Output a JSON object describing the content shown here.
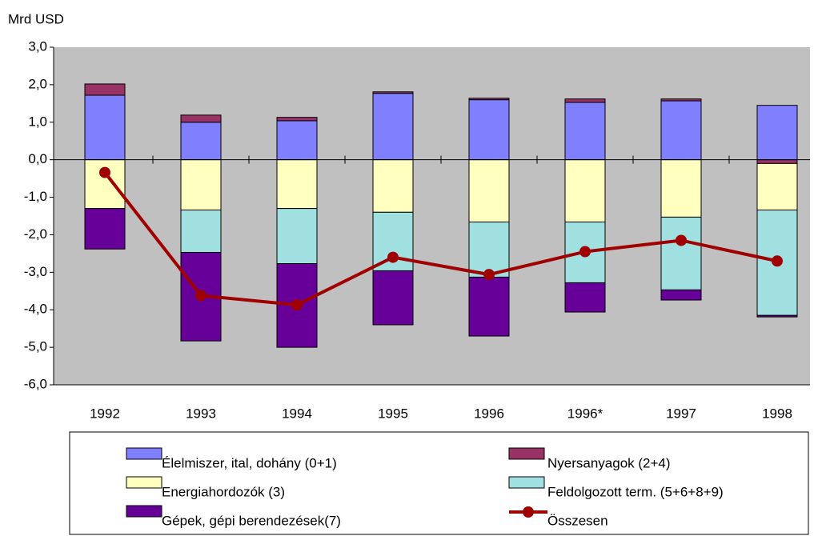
{
  "chart_data": {
    "type": "bar",
    "stacked": true,
    "y_label": "Mrd USD",
    "categories": [
      "1992",
      "1993",
      "1994",
      "1995",
      "1996",
      "1996*",
      "1997",
      "1998"
    ],
    "ylim": [
      -6,
      3
    ],
    "yticks": [
      {
        "value": 3,
        "label": "3,0"
      },
      {
        "value": 2,
        "label": "2,0"
      },
      {
        "value": 1,
        "label": "1,0"
      },
      {
        "value": 0,
        "label": "0,0"
      },
      {
        "value": -1,
        "label": "-1,0"
      },
      {
        "value": -2,
        "label": "-2,0"
      },
      {
        "value": -3,
        "label": "-3,0"
      },
      {
        "value": -4,
        "label": "-4,0"
      },
      {
        "value": -5,
        "label": "-5,0"
      },
      {
        "value": -6,
        "label": "-6,0"
      }
    ],
    "series": [
      {
        "name": "Élelmiszer, ital, dohány (0+1)",
        "color": "#8080ff",
        "values": [
          1.72,
          1.0,
          1.04,
          1.77,
          1.6,
          1.53,
          1.57,
          1.45
        ]
      },
      {
        "name": "Nyersanyagok  (2+4)",
        "color": "#993366",
        "values": [
          0.3,
          0.19,
          0.09,
          0.04,
          0.04,
          0.09,
          0.05,
          -0.1
        ]
      },
      {
        "name": "Energiahordozók (3)",
        "color": "#ffffc0",
        "values": [
          -1.3,
          -1.34,
          -1.3,
          -1.4,
          -1.66,
          -1.66,
          -1.53,
          -1.24
        ]
      },
      {
        "name": "Feldolgozott term. (5+6+8+9)",
        "color": "#a0e0e0",
        "values": [
          0,
          -1.13,
          -1.47,
          -1.56,
          -1.47,
          -1.62,
          -1.94,
          -2.81
        ]
      },
      {
        "name": "Gépek, gépi berendezések(7)",
        "color": "#660099",
        "values": [
          -1.08,
          -2.36,
          -2.23,
          -1.44,
          -1.57,
          -0.78,
          -0.27,
          -0.04
        ]
      },
      {
        "name": "Összesen",
        "color": "#a00000",
        "type": "line",
        "values": [
          -0.34,
          -3.62,
          -3.87,
          -2.6,
          -3.06,
          -2.45,
          -2.15,
          -2.7
        ]
      }
    ],
    "plot_background": "#c0c0c0"
  }
}
